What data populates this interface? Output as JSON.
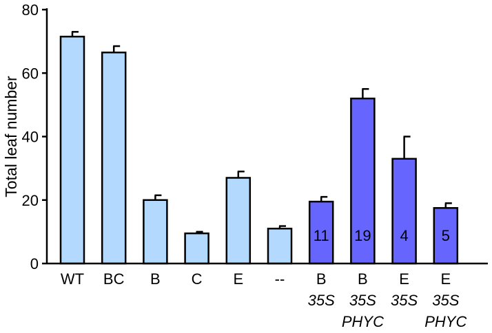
{
  "chart_data": {
    "type": "bar",
    "title": "",
    "xlabel": "",
    "ylabel": "Total leaf number",
    "ylim": [
      0,
      80
    ],
    "yticks": [
      0,
      20,
      40,
      60,
      80
    ],
    "grid": false,
    "colors": {
      "light": "#b3d9ff",
      "dark": "#6666ff",
      "outline": "#000000"
    },
    "categories": [
      {
        "lines": [
          "WT"
        ],
        "italic": [
          false
        ]
      },
      {
        "lines": [
          "BC"
        ],
        "italic": [
          false
        ]
      },
      {
        "lines": [
          "B"
        ],
        "italic": [
          false
        ]
      },
      {
        "lines": [
          "C"
        ],
        "italic": [
          false
        ]
      },
      {
        "lines": [
          "E"
        ],
        "italic": [
          false
        ]
      },
      {
        "lines": [
          "--"
        ],
        "italic": [
          false
        ]
      },
      {
        "lines": [
          "B",
          "35S"
        ],
        "italic": [
          false,
          true
        ]
      },
      {
        "lines": [
          "B",
          "35S",
          "PHYC"
        ],
        "italic": [
          false,
          true,
          true
        ]
      },
      {
        "lines": [
          "E",
          "35S"
        ],
        "italic": [
          false,
          true
        ]
      },
      {
        "lines": [
          "E",
          "35S",
          "PHYC"
        ],
        "italic": [
          false,
          true,
          true
        ]
      }
    ],
    "values": [
      71.5,
      66.5,
      20,
      9.5,
      27,
      11,
      19.5,
      52,
      33,
      17.5
    ],
    "errors": [
      1.5,
      2,
      1.5,
      0.5,
      2,
      0.8,
      1.5,
      3,
      7,
      1.5
    ],
    "bar_colors": [
      "light",
      "light",
      "light",
      "light",
      "light",
      "light",
      "dark",
      "dark",
      "dark",
      "dark"
    ],
    "bar_annotations": [
      "",
      "",
      "",
      "",
      "",
      "",
      "11",
      "19",
      "4",
      "5"
    ]
  }
}
